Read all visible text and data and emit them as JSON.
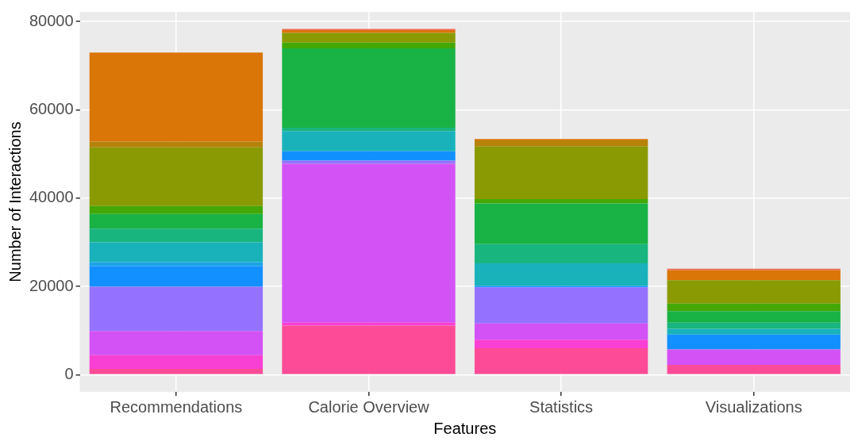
{
  "chart_data": {
    "type": "bar",
    "stacked": true,
    "xlabel": "Features",
    "ylabel": "Number of Interactions",
    "categories": [
      "Recommendations",
      "Calorie Overview",
      "Statistics",
      "Visualizations"
    ],
    "ylim": [
      -3900,
      82200
    ],
    "yticks": [
      0,
      20000,
      40000,
      60000,
      80000
    ],
    "grid": true,
    "legend": false,
    "series": [
      {
        "color": "#fe4b98",
        "values": [
          1300,
          11100,
          6000,
          2200
        ]
      },
      {
        "color": "#f840d4",
        "values": [
          3100,
          700,
          1900,
          null
        ]
      },
      {
        "color": "#d352f6",
        "values": [
          5500,
          36000,
          3700,
          3500
        ]
      },
      {
        "color": "#9472ff",
        "values": [
          10000,
          700,
          8200,
          null
        ]
      },
      {
        "color": "#1390ff",
        "values": [
          4700,
          2100,
          300,
          3400
        ]
      },
      {
        "color": "#19a4e6",
        "values": [
          900,
          null,
          null,
          null
        ]
      },
      {
        "color": "#19b2bb",
        "values": [
          4500,
          4600,
          5100,
          1300
        ]
      },
      {
        "color": "#19b57f",
        "values": [
          3100,
          750,
          4400,
          1400
        ]
      },
      {
        "color": "#19b245",
        "values": [
          3300,
          18000,
          9200,
          2600
        ]
      },
      {
        "color": "#43a806",
        "values": [
          1800,
          1300,
          1000,
          1700
        ]
      },
      {
        "color": "#8a9a03",
        "values": [
          13300,
          2200,
          11900,
          5300
        ]
      },
      {
        "color": "#b5830a",
        "values": [
          1300,
          null,
          1400,
          null
        ]
      },
      {
        "color": "#da7508",
        "values": [
          20200,
          600,
          300,
          2300
        ]
      },
      {
        "color": "#f0685a",
        "values": [
          null,
          300,
          null,
          300
        ]
      }
    ]
  }
}
